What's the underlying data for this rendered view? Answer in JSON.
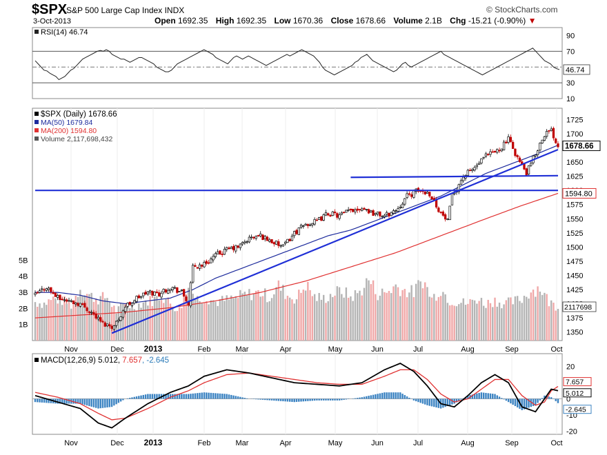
{
  "header": {
    "symbol": "$SPX",
    "name": "S&P 500 Large Cap Index",
    "exchange": "INDX",
    "brand": "© StockCharts.com",
    "date": "3-Oct-2013",
    "open_label": "Open",
    "open": "1692.35",
    "high_label": "High",
    "high": "1692.35",
    "low_label": "Low",
    "low": "1670.36",
    "close_label": "Close",
    "close": "1678.66",
    "volume_label": "Volume",
    "volume": "2.1B",
    "chg_label": "Chg",
    "chg": "-15.21 (-0.90%)",
    "chg_arrow": "▼"
  },
  "colors": {
    "price_up": "#000000",
    "price_down": "#c00000",
    "ma50": "#1c2a9c",
    "ma200": "#e03030",
    "volume": "#b4b4b4",
    "volume_down": "#f0a8a8",
    "trendline": "#1f2fd6",
    "macd": "#000000",
    "signal": "#e03030",
    "histogram": "#3b83c2",
    "hist_label": "#2a7ab8"
  },
  "chart_data": [
    {
      "type": "line",
      "panel": "rsi",
      "legend": "RSI(14) 46.74",
      "last_label": "46.74",
      "ylim": [
        10,
        100
      ],
      "yticks": [
        10,
        30,
        50,
        70,
        90
      ],
      "reference_lines": [
        30,
        50,
        70
      ],
      "grid": false,
      "series": [
        {
          "values": [
            58,
            54,
            50,
            46,
            45,
            42,
            40,
            38,
            34,
            36,
            38,
            42,
            46,
            48,
            52,
            56,
            60,
            62,
            64,
            66,
            68,
            70,
            71,
            70,
            72,
            70,
            66,
            64,
            62,
            60,
            60,
            58,
            56,
            58,
            60,
            62,
            62,
            60,
            58,
            56,
            54,
            50,
            48,
            46,
            44,
            44,
            46,
            50,
            54,
            56,
            58,
            60,
            62,
            64,
            66,
            68,
            70,
            72,
            70,
            68,
            66,
            62,
            60,
            58,
            56,
            54,
            58,
            62,
            64,
            62,
            60,
            62,
            64,
            62,
            60,
            58,
            56,
            54,
            52,
            54,
            56,
            58,
            60,
            62,
            64,
            66,
            64,
            66,
            68,
            70,
            72,
            70,
            68,
            66,
            64,
            60,
            56,
            50,
            46,
            44,
            42,
            40,
            42,
            44,
            46,
            48,
            50,
            52,
            56,
            58,
            62,
            64,
            66,
            62,
            58,
            56,
            54,
            52,
            50,
            48,
            46,
            44,
            46,
            50,
            54,
            56,
            52,
            50,
            52,
            54,
            56,
            58,
            60,
            62,
            64,
            66,
            68,
            70,
            66,
            64,
            62,
            60,
            58,
            56,
            54,
            52,
            50,
            48,
            46,
            44,
            42,
            40,
            42,
            44,
            46,
            48,
            50,
            52,
            54,
            56,
            58,
            60,
            62,
            64,
            66,
            68,
            70,
            72,
            74,
            70,
            66,
            62,
            58,
            56,
            54,
            50,
            48,
            46.74
          ]
        }
      ]
    },
    {
      "type": "candlestick",
      "panel": "price",
      "legend": [
        "$SPX (Daily) 1678.66",
        "MA(50) 1679.84",
        "MA(200) 1594.80",
        "Volume 2,117,698,432"
      ],
      "x_labels": [
        "Nov",
        "Dec",
        "2013",
        "Feb",
        "Mar",
        "Apr",
        "May",
        "Jun",
        "Jul",
        "Aug",
        "Sep",
        "Oct"
      ],
      "y_labels": [
        1350,
        1375,
        1400,
        1425,
        1450,
        1475,
        1500,
        1525,
        1550,
        1575,
        1600,
        1625,
        1650,
        1675,
        1700,
        1725
      ],
      "ylim": [
        1335,
        1745
      ],
      "volume_labels": [
        "1B",
        "2B",
        "3B",
        "4B",
        "5B"
      ],
      "volume_ylim": [
        0,
        6
      ],
      "last_labels": {
        "close": "1678.66",
        "ma200": "1594.80",
        "volume": "2117698"
      },
      "x_domain_days": [
        0,
        232
      ],
      "closes": [
        [
          0,
          1415
        ],
        [
          5,
          1430
        ],
        [
          10,
          1410
        ],
        [
          15,
          1405
        ],
        [
          20,
          1400
        ],
        [
          25,
          1385
        ],
        [
          30,
          1365
        ],
        [
          35,
          1360
        ],
        [
          40,
          1395
        ],
        [
          45,
          1410
        ],
        [
          50,
          1420
        ],
        [
          55,
          1418
        ],
        [
          60,
          1430
        ],
        [
          65,
          1420
        ],
        [
          68,
          1400
        ],
        [
          70,
          1465
        ],
        [
          75,
          1470
        ],
        [
          80,
          1485
        ],
        [
          85,
          1495
        ],
        [
          90,
          1500
        ],
        [
          95,
          1515
        ],
        [
          100,
          1520
        ],
        [
          105,
          1510
        ],
        [
          110,
          1500
        ],
        [
          115,
          1525
        ],
        [
          120,
          1540
        ],
        [
          125,
          1545
        ],
        [
          130,
          1560
        ],
        [
          135,
          1555
        ],
        [
          140,
          1565
        ],
        [
          145,
          1570
        ],
        [
          150,
          1560
        ],
        [
          155,
          1555
        ],
        [
          160,
          1565
        ],
        [
          165,
          1590
        ],
        [
          170,
          1600
        ],
        [
          175,
          1595
        ],
        [
          180,
          1560
        ],
        [
          183,
          1545
        ],
        [
          185,
          1590
        ],
        [
          190,
          1625
        ],
        [
          195,
          1640
        ],
        [
          200,
          1660
        ],
        [
          205,
          1670
        ],
        [
          210,
          1690
        ],
        [
          215,
          1650
        ],
        [
          218,
          1630
        ],
        [
          222,
          1665
        ],
        [
          226,
          1700
        ],
        [
          229,
          1705
        ],
        [
          232,
          1678.66
        ]
      ],
      "ma50": [
        [
          0,
          1420
        ],
        [
          10,
          1420
        ],
        [
          20,
          1415
        ],
        [
          30,
          1405
        ],
        [
          40,
          1400
        ],
        [
          50,
          1405
        ],
        [
          60,
          1410
        ],
        [
          70,
          1425
        ],
        [
          80,
          1445
        ],
        [
          90,
          1460
        ],
        [
          100,
          1475
        ],
        [
          110,
          1490
        ],
        [
          120,
          1505
        ],
        [
          130,
          1520
        ],
        [
          140,
          1530
        ],
        [
          150,
          1545
        ],
        [
          160,
          1560
        ],
        [
          170,
          1575
        ],
        [
          180,
          1590
        ],
        [
          190,
          1610
        ],
        [
          200,
          1630
        ],
        [
          210,
          1645
        ],
        [
          220,
          1660
        ],
        [
          232,
          1679.84
        ]
      ],
      "ma200": [
        [
          0,
          1375
        ],
        [
          20,
          1380
        ],
        [
          40,
          1385
        ],
        [
          60,
          1393
        ],
        [
          80,
          1405
        ],
        [
          100,
          1420
        ],
        [
          120,
          1440
        ],
        [
          140,
          1465
        ],
        [
          160,
          1490
        ],
        [
          180,
          1520
        ],
        [
          200,
          1550
        ],
        [
          215,
          1572
        ],
        [
          232,
          1594.8
        ]
      ],
      "trendlines": [
        {
          "from": [
            34,
            1348
          ],
          "to": [
            232,
            1672
          ]
        },
        {
          "from": [
            140,
            1623
          ],
          "to": [
            232,
            1626
          ]
        },
        {
          "from": [
            0,
            1600
          ],
          "to": [
            232,
            1600
          ]
        }
      ],
      "volume": [
        [
          0,
          2.4
        ],
        [
          4,
          2.3
        ],
        [
          8,
          2.6
        ],
        [
          12,
          2.5
        ],
        [
          16,
          2.2
        ],
        [
          20,
          3.3
        ],
        [
          24,
          2.8
        ],
        [
          28,
          2.6
        ],
        [
          32,
          2.7
        ],
        [
          36,
          1.8
        ],
        [
          40,
          2.3
        ],
        [
          44,
          2.1
        ],
        [
          48,
          2.4
        ],
        [
          52,
          2.5
        ],
        [
          56,
          2.8
        ],
        [
          60,
          2.3
        ],
        [
          64,
          1.9
        ],
        [
          68,
          3.3
        ],
        [
          72,
          2.6
        ],
        [
          76,
          2.7
        ],
        [
          80,
          2.4
        ],
        [
          84,
          2.5
        ],
        [
          88,
          2.6
        ],
        [
          92,
          2.8
        ],
        [
          96,
          2.9
        ],
        [
          100,
          3.0
        ],
        [
          104,
          2.7
        ],
        [
          108,
          3.4
        ],
        [
          112,
          2.8
        ],
        [
          116,
          2.6
        ],
        [
          120,
          3.5
        ],
        [
          124,
          2.7
        ],
        [
          128,
          2.6
        ],
        [
          132,
          2.9
        ],
        [
          136,
          3.1
        ],
        [
          140,
          2.7
        ],
        [
          144,
          3.0
        ],
        [
          148,
          3.8
        ],
        [
          152,
          2.9
        ],
        [
          156,
          3.0
        ],
        [
          160,
          3.4
        ],
        [
          164,
          3.1
        ],
        [
          168,
          3.0
        ],
        [
          172,
          3.8
        ],
        [
          176,
          2.6
        ],
        [
          180,
          3.2
        ],
        [
          184,
          2.5
        ],
        [
          188,
          2.4
        ],
        [
          192,
          2.3
        ],
        [
          196,
          2.6
        ],
        [
          200,
          2.3
        ],
        [
          204,
          2.5
        ],
        [
          208,
          2.3
        ],
        [
          212,
          2.4
        ],
        [
          216,
          2.6
        ],
        [
          220,
          3.1
        ],
        [
          224,
          3.3
        ],
        [
          228,
          2.4
        ],
        [
          232,
          2.1
        ]
      ]
    },
    {
      "type": "line",
      "panel": "macd",
      "legend": {
        "label": "MACD(12,26,9)",
        "macd": "5.012",
        "signal": "7.657",
        "hist": "-2.645"
      },
      "ylim": [
        -22,
        28
      ],
      "yticks": [
        -20,
        -10,
        0,
        10,
        20
      ],
      "last_labels": {
        "signal": "7.657",
        "macd": "5.012",
        "hist": "-2.645"
      },
      "series": [
        {
          "name": "MACD",
          "points": [
            [
              0,
              2
            ],
            [
              10,
              -2
            ],
            [
              20,
              -6
            ],
            [
              28,
              -15
            ],
            [
              34,
              -18
            ],
            [
              40,
              -12
            ],
            [
              50,
              -3
            ],
            [
              60,
              4
            ],
            [
              68,
              8
            ],
            [
              75,
              14
            ],
            [
              85,
              18
            ],
            [
              95,
              16
            ],
            [
              105,
              13
            ],
            [
              115,
              10
            ],
            [
              125,
              9
            ],
            [
              135,
              8
            ],
            [
              145,
              10
            ],
            [
              155,
              18
            ],
            [
              162,
              22
            ],
            [
              168,
              17
            ],
            [
              174,
              8
            ],
            [
              180,
              -3
            ],
            [
              186,
              -5
            ],
            [
              192,
              2
            ],
            [
              198,
              10
            ],
            [
              204,
              15
            ],
            [
              210,
              10
            ],
            [
              216,
              -5
            ],
            [
              222,
              -8
            ],
            [
              226,
              0
            ],
            [
              229,
              6
            ],
            [
              232,
              5.012
            ]
          ]
        },
        {
          "name": "Signal",
          "points": [
            [
              0,
              4
            ],
            [
              10,
              1
            ],
            [
              20,
              -3
            ],
            [
              28,
              -9
            ],
            [
              34,
              -13
            ],
            [
              40,
              -12
            ],
            [
              50,
              -6
            ],
            [
              60,
              1
            ],
            [
              68,
              5
            ],
            [
              75,
              10
            ],
            [
              85,
              15
            ],
            [
              95,
              16
            ],
            [
              105,
              14
            ],
            [
              115,
              12
            ],
            [
              125,
              10
            ],
            [
              135,
              9
            ],
            [
              145,
              9
            ],
            [
              155,
              14
            ],
            [
              162,
              18
            ],
            [
              168,
              18
            ],
            [
              174,
              12
            ],
            [
              180,
              3
            ],
            [
              186,
              -2
            ],
            [
              192,
              0
            ],
            [
              198,
              6
            ],
            [
              204,
              12
            ],
            [
              210,
              12
            ],
            [
              216,
              2
            ],
            [
              222,
              -4
            ],
            [
              226,
              -2
            ],
            [
              229,
              5
            ],
            [
              232,
              7.657
            ]
          ]
        }
      ]
    }
  ]
}
